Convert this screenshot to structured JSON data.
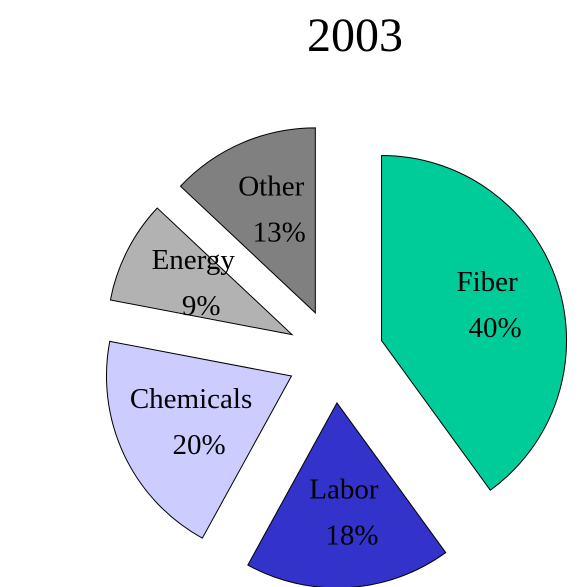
{
  "chart_data": {
    "type": "pie",
    "title": "2003",
    "categories": [
      "Fiber",
      "Labor",
      "Chemicals",
      "Energy",
      "Other"
    ],
    "values": [
      40,
      18,
      20,
      9,
      13
    ],
    "value_labels": [
      "40%",
      "18%",
      "20%",
      "9%",
      "13%"
    ],
    "colors": [
      "#00cc99",
      "#3333cc",
      "#ccccff",
      "#b2b2b2",
      "#808080"
    ]
  }
}
